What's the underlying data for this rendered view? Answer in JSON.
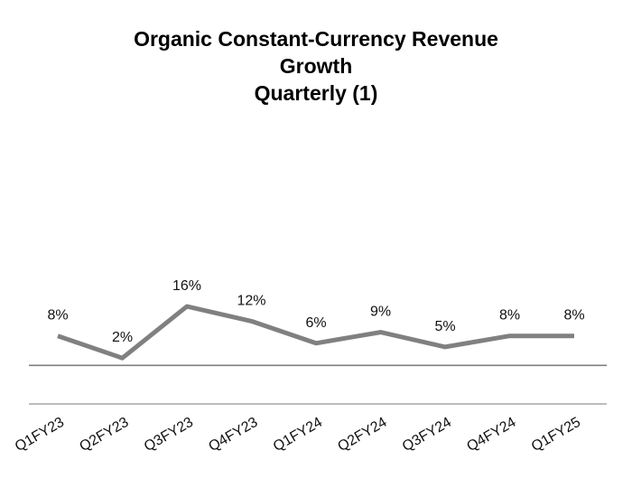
{
  "chart_data": {
    "type": "line",
    "title_lines": [
      "Organic Constant-Currency Revenue",
      "Growth",
      "Quarterly (1)"
    ],
    "categories": [
      "Q1FY23",
      "Q2FY23",
      "Q3FY23",
      "Q4FY23",
      "Q1FY24",
      "Q2FY24",
      "Q3FY24",
      "Q4FY24",
      "Q1FY25"
    ],
    "values": [
      8,
      2,
      16,
      12,
      6,
      9,
      5,
      8,
      8
    ],
    "value_labels": [
      "8%",
      "2%",
      "16%",
      "12%",
      "6%",
      "9%",
      "5%",
      "8%",
      "8%"
    ],
    "ylim": [
      -9,
      17
    ],
    "grid": false,
    "legend": "none",
    "colors": {
      "line": "#808080",
      "axis": "#7f7f7f",
      "text": "#000000"
    }
  }
}
